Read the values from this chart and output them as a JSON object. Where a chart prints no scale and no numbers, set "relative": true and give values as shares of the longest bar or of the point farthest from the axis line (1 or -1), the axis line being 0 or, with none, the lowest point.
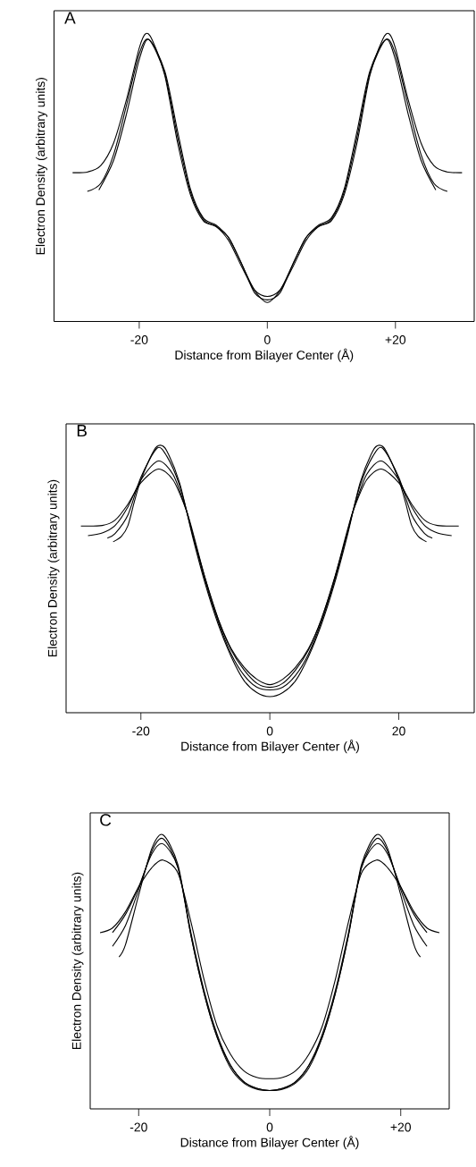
{
  "chart_data": [
    {
      "type": "line",
      "title": "A",
      "xlabel": "Distance from Bilayer Center (Å)",
      "ylabel": "Electron Density (arbitrary units)",
      "relative": true,
      "xlim": [
        -33.3,
        32.3
      ],
      "xticks": [
        -20,
        0,
        {
          "value": 20,
          "label": "+20"
        }
      ],
      "series": [
        {
          "color": "#000000",
          "x": [
            -30.4,
            -28,
            -26,
            -24,
            -22,
            -20,
            -19,
            -18,
            -16,
            -14,
            -12,
            -10,
            -8,
            -6,
            -4,
            -2,
            0,
            2,
            4,
            6,
            8,
            10,
            12,
            14,
            16,
            18,
            19,
            20,
            22,
            24,
            26,
            28,
            30.4
          ],
          "values": [
            0.517,
            0.52,
            0.542,
            0.62,
            0.77,
            0.95,
            1.0,
            0.98,
            0.854,
            0.62,
            0.44,
            0.35,
            0.33,
            0.28,
            0.19,
            0.108,
            0.066,
            0.108,
            0.19,
            0.28,
            0.33,
            0.35,
            0.44,
            0.62,
            0.854,
            0.98,
            1.0,
            0.95,
            0.77,
            0.62,
            0.542,
            0.52,
            0.517
          ]
        },
        {
          "color": "#000000",
          "x": [
            -28.1,
            -26,
            -24,
            -22,
            -20,
            -18.5,
            -16,
            -14,
            -12,
            -10,
            -8,
            -6,
            -4,
            -2,
            0,
            2,
            4,
            6,
            8,
            10,
            12,
            14,
            16,
            18.5,
            20,
            22,
            24,
            26,
            28.1
          ],
          "values": [
            0.452,
            0.48,
            0.58,
            0.75,
            0.93,
            0.98,
            0.86,
            0.64,
            0.45,
            0.355,
            0.33,
            0.29,
            0.2,
            0.11,
            0.087,
            0.11,
            0.2,
            0.29,
            0.33,
            0.355,
            0.45,
            0.64,
            0.86,
            0.98,
            0.93,
            0.75,
            0.58,
            0.48,
            0.452
          ]
        },
        {
          "color": "#000000",
          "x": [
            -26.3,
            -24,
            -22,
            -20,
            -18.5,
            -16,
            -14,
            -12,
            -10,
            -8,
            -6,
            -4,
            -2,
            0,
            2,
            4,
            6,
            8,
            10,
            12,
            14,
            16,
            18.5,
            20,
            22,
            24,
            26.3
          ],
          "values": [
            0.457,
            0.56,
            0.72,
            0.91,
            0.98,
            0.87,
            0.66,
            0.46,
            0.36,
            0.335,
            0.29,
            0.2,
            0.1,
            0.075,
            0.1,
            0.2,
            0.29,
            0.335,
            0.36,
            0.46,
            0.66,
            0.87,
            0.98,
            0.91,
            0.72,
            0.56,
            0.457
          ]
        }
      ]
    },
    {
      "type": "line",
      "title": "B",
      "xlabel": "Distance from Bilayer Center (Å)",
      "ylabel": "Electron Density (arbitrary units)",
      "relative": true,
      "xlim": [
        -31.6,
        31.7
      ],
      "xticks": [
        -20,
        0,
        20
      ],
      "series": [
        {
          "color": "#000000",
          "x": [
            -29.3,
            -26,
            -24,
            -22,
            -20,
            -17.3,
            -15,
            -13,
            -12,
            -10,
            -8,
            -6,
            -4,
            -2,
            0,
            2,
            4,
            6,
            8,
            10,
            12,
            13,
            15,
            17.3,
            20,
            22,
            24,
            26,
            29.3
          ],
          "values": [
            0.698,
            0.7,
            0.72,
            0.78,
            0.86,
            0.911,
            0.87,
            0.76,
            0.68,
            0.5,
            0.35,
            0.24,
            0.17,
            0.125,
            0.105,
            0.125,
            0.17,
            0.24,
            0.35,
            0.5,
            0.68,
            0.76,
            0.87,
            0.911,
            0.86,
            0.78,
            0.72,
            0.7,
            0.698
          ]
        },
        {
          "color": "#000000",
          "x": [
            -28.2,
            -26,
            -24,
            -22,
            -20,
            -17.3,
            -15,
            -13,
            -12,
            -10,
            -8,
            -6,
            -4,
            -2,
            0,
            2,
            4,
            6,
            8,
            10,
            12,
            13,
            15,
            17.3,
            20,
            22,
            24,
            26,
            28.2
          ],
          "values": [
            0.662,
            0.672,
            0.7,
            0.77,
            0.87,
            0.941,
            0.89,
            0.76,
            0.67,
            0.5,
            0.35,
            0.235,
            0.16,
            0.11,
            0.095,
            0.11,
            0.16,
            0.235,
            0.35,
            0.5,
            0.67,
            0.76,
            0.89,
            0.941,
            0.87,
            0.77,
            0.7,
            0.672,
            0.662
          ]
        },
        {
          "color": "#000000",
          "x": [
            -25.2,
            -24,
            -22,
            -20,
            -17.5,
            -16,
            -14,
            -12,
            -10,
            -8,
            -6,
            -4,
            -2,
            0,
            2,
            4,
            6,
            8,
            10,
            12,
            14,
            16,
            17.5,
            20,
            22,
            24,
            25.2
          ],
          "values": [
            0.653,
            0.67,
            0.74,
            0.88,
            0.989,
            0.96,
            0.85,
            0.67,
            0.49,
            0.34,
            0.22,
            0.14,
            0.095,
            0.085,
            0.095,
            0.14,
            0.22,
            0.34,
            0.49,
            0.67,
            0.85,
            0.96,
            0.989,
            0.88,
            0.74,
            0.67,
            0.653
          ]
        },
        {
          "color": "#000000",
          "x": [
            -24.3,
            -23,
            -22,
            -21,
            -20,
            -18,
            -17,
            -16,
            -14,
            -12,
            -10,
            -8,
            -6,
            -4,
            -2,
            0,
            2,
            4,
            6,
            8,
            10,
            12,
            14,
            16,
            17,
            18,
            20,
            21,
            22,
            23,
            24.3
          ],
          "values": [
            0.639,
            0.66,
            0.7,
            0.79,
            0.87,
            0.98,
            1.0,
            0.98,
            0.86,
            0.66,
            0.48,
            0.33,
            0.21,
            0.12,
            0.075,
            0.06,
            0.075,
            0.12,
            0.21,
            0.33,
            0.48,
            0.66,
            0.86,
            0.98,
            1.0,
            0.98,
            0.87,
            0.79,
            0.7,
            0.66,
            0.639
          ]
        }
      ]
    },
    {
      "type": "line",
      "title": "C",
      "xlabel": "Distance from Bilayer Center (Å)",
      "ylabel": "Electron Density (arbitrary units)",
      "relative": true,
      "xlim": [
        -27.4,
        27.4
      ],
      "xticks": [
        -20,
        0,
        {
          "value": 20,
          "label": "+20"
        }
      ],
      "series": [
        {
          "color": "#000000",
          "x": [
            -25.9,
            -24,
            -22,
            -20,
            -18,
            -16.3,
            -14,
            -12,
            -10,
            -8,
            -6,
            -4,
            -2,
            0,
            2,
            4,
            6,
            8,
            10,
            12,
            14,
            16.3,
            18,
            20,
            22,
            24,
            25.9
          ],
          "values": [
            0.643,
            0.66,
            0.72,
            0.81,
            0.88,
            0.908,
            0.86,
            0.68,
            0.47,
            0.3,
            0.2,
            0.14,
            0.115,
            0.11,
            0.115,
            0.14,
            0.2,
            0.3,
            0.47,
            0.68,
            0.86,
            0.908,
            0.88,
            0.81,
            0.72,
            0.66,
            0.643
          ]
        },
        {
          "color": "#000000",
          "x": [
            -24,
            -22,
            -20,
            -18,
            -16.3,
            -14,
            -12,
            -10,
            -8,
            -6,
            -4,
            -2,
            0,
            2,
            4,
            6,
            8,
            10,
            12,
            14,
            16.3,
            18,
            20,
            22,
            24
          ],
          "values": [
            0.643,
            0.71,
            0.81,
            0.93,
            0.967,
            0.88,
            0.64,
            0.43,
            0.27,
            0.16,
            0.1,
            0.075,
            0.067,
            0.075,
            0.1,
            0.16,
            0.27,
            0.43,
            0.64,
            0.88,
            0.967,
            0.93,
            0.81,
            0.71,
            0.643
          ]
        },
        {
          "color": "#000000",
          "x": [
            -24,
            -22,
            -20,
            -18,
            -16.3,
            -14,
            -12,
            -10,
            -8,
            -6,
            -4,
            -2,
            0,
            2,
            4,
            6,
            8,
            10,
            12,
            14,
            16.3,
            18,
            20,
            22,
            24
          ],
          "values": [
            0.593,
            0.67,
            0.8,
            0.94,
            0.986,
            0.88,
            0.63,
            0.42,
            0.26,
            0.15,
            0.095,
            0.072,
            0.067,
            0.072,
            0.095,
            0.15,
            0.26,
            0.42,
            0.63,
            0.88,
            0.986,
            0.94,
            0.8,
            0.67,
            0.593
          ]
        },
        {
          "color": "#000000",
          "x": [
            -23,
            -22,
            -20,
            -18,
            -16.3,
            -14,
            -12,
            -10,
            -8,
            -6,
            -4,
            -2,
            0,
            2,
            4,
            6,
            8,
            10,
            12,
            14,
            16.3,
            18,
            20,
            22,
            23
          ],
          "values": [
            0.554,
            0.6,
            0.78,
            0.95,
            1.0,
            0.89,
            0.63,
            0.42,
            0.26,
            0.16,
            0.1,
            0.075,
            0.067,
            0.075,
            0.1,
            0.16,
            0.26,
            0.42,
            0.63,
            0.89,
            1.0,
            0.95,
            0.78,
            0.6,
            0.554
          ]
        }
      ]
    }
  ]
}
